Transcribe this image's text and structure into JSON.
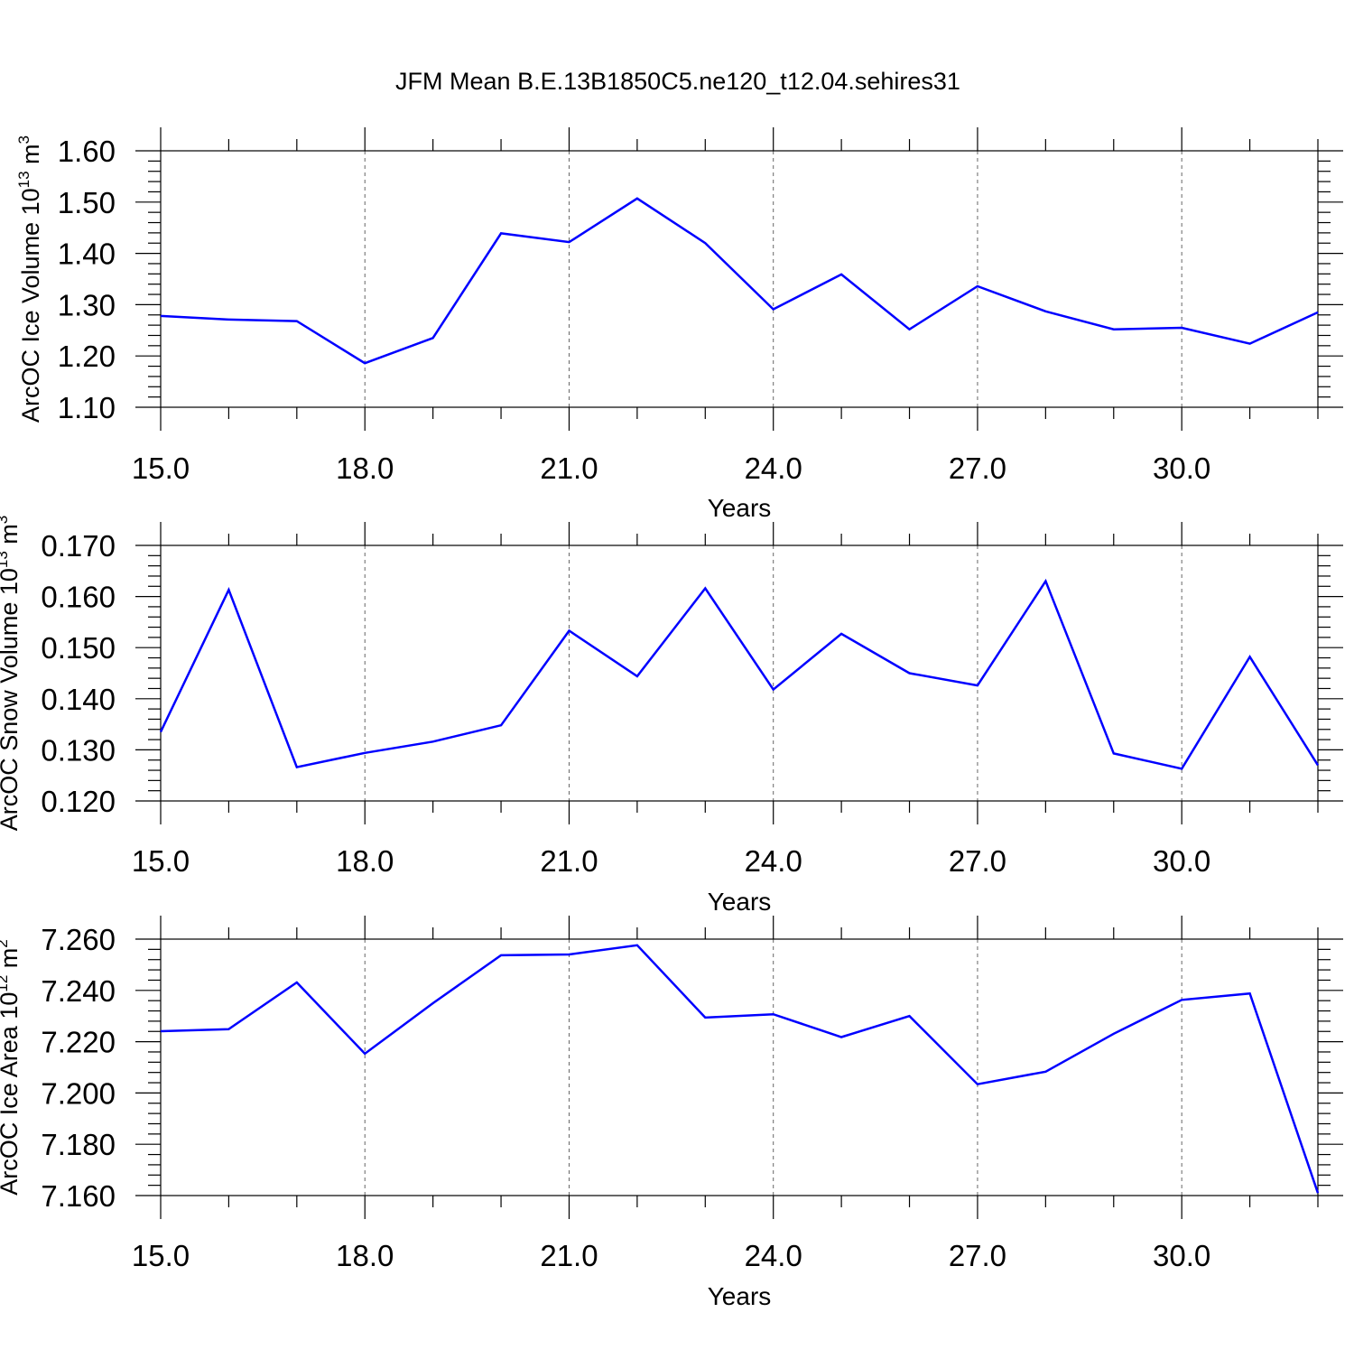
{
  "title": "JFM Mean B.E.13B1850C5.ne120_t12.04.sehires31",
  "colors": {
    "series": "#0000ff",
    "axis": "#000000",
    "grid": "#666666"
  },
  "chart_data": [
    {
      "type": "line",
      "ylabel_main": "ArcOC Ice Volume 10",
      "ylabel_exp": "13",
      "ylabel_unit": " m",
      "ylabel_unit_exp": "3",
      "xlabel": "Years",
      "xlim": [
        15,
        32
      ],
      "ylim": [
        1.1,
        1.6
      ],
      "x_ticks": [
        15,
        18,
        21,
        24,
        27,
        30
      ],
      "x_tick_labels": [
        "15.0",
        "18.0",
        "21.0",
        "24.0",
        "27.0",
        "30.0"
      ],
      "y_ticks": [
        1.1,
        1.2,
        1.3,
        1.4,
        1.5,
        1.6
      ],
      "y_tick_labels": [
        "1.10",
        "1.20",
        "1.30",
        "1.40",
        "1.50",
        "1.60"
      ],
      "grid": "dashed vertical at major x ticks",
      "x": [
        15,
        16,
        17,
        18,
        19,
        20,
        21,
        22,
        23,
        24,
        25,
        26,
        27,
        28,
        29,
        30,
        31,
        32
      ],
      "values": [
        1.278,
        1.271,
        1.268,
        1.186,
        1.235,
        1.439,
        1.422,
        1.507,
        1.42,
        1.291,
        1.359,
        1.252,
        1.336,
        1.287,
        1.252,
        1.255,
        1.224,
        1.285
      ]
    },
    {
      "type": "line",
      "ylabel_main": "ArcOC Snow Volume 10",
      "ylabel_exp": "13",
      "ylabel_unit": " m",
      "ylabel_unit_exp": "3",
      "xlabel": "Years",
      "xlim": [
        15,
        32
      ],
      "ylim": [
        0.12,
        0.17
      ],
      "x_ticks": [
        15,
        18,
        21,
        24,
        27,
        30
      ],
      "x_tick_labels": [
        "15.0",
        "18.0",
        "21.0",
        "24.0",
        "27.0",
        "30.0"
      ],
      "y_ticks": [
        0.12,
        0.13,
        0.14,
        0.15,
        0.16,
        0.17
      ],
      "y_tick_labels": [
        "0.120",
        "0.130",
        "0.140",
        "0.150",
        "0.160",
        "0.170"
      ],
      "grid": "dashed vertical at major x ticks",
      "x": [
        15,
        16,
        17,
        18,
        19,
        20,
        21,
        22,
        23,
        24,
        25,
        26,
        27,
        28,
        29,
        30,
        31,
        32
      ],
      "values": [
        0.1335,
        0.1613,
        0.1266,
        0.1294,
        0.1316,
        0.1348,
        0.1533,
        0.1444,
        0.1616,
        0.1418,
        0.1527,
        0.145,
        0.1426,
        0.163,
        0.1293,
        0.1263,
        0.1482,
        0.127
      ]
    },
    {
      "type": "line",
      "ylabel_main": "ArcOC Ice Area 10",
      "ylabel_exp": "12",
      "ylabel_unit": " m",
      "ylabel_unit_exp": "2",
      "xlabel": "Years",
      "xlim": [
        15,
        32
      ],
      "ylim": [
        7.16,
        7.26
      ],
      "x_ticks": [
        15,
        18,
        21,
        24,
        27,
        30
      ],
      "x_tick_labels": [
        "15.0",
        "18.0",
        "21.0",
        "24.0",
        "27.0",
        "30.0"
      ],
      "y_ticks": [
        7.16,
        7.18,
        7.2,
        7.22,
        7.24,
        7.26
      ],
      "y_tick_labels": [
        "7.160",
        "7.180",
        "7.200",
        "7.220",
        "7.240",
        "7.260"
      ],
      "grid": "dashed vertical at major x ticks",
      "x": [
        15,
        16,
        17,
        18,
        19,
        20,
        21,
        22,
        23,
        24,
        25,
        26,
        27,
        28,
        29,
        30,
        31,
        32
      ],
      "values": [
        7.2241,
        7.2249,
        7.2431,
        7.2153,
        7.235,
        7.2537,
        7.254,
        7.2576,
        7.2294,
        7.2307,
        7.2218,
        7.23,
        7.2034,
        7.2083,
        7.2231,
        7.2363,
        7.2388,
        7.161
      ]
    }
  ]
}
